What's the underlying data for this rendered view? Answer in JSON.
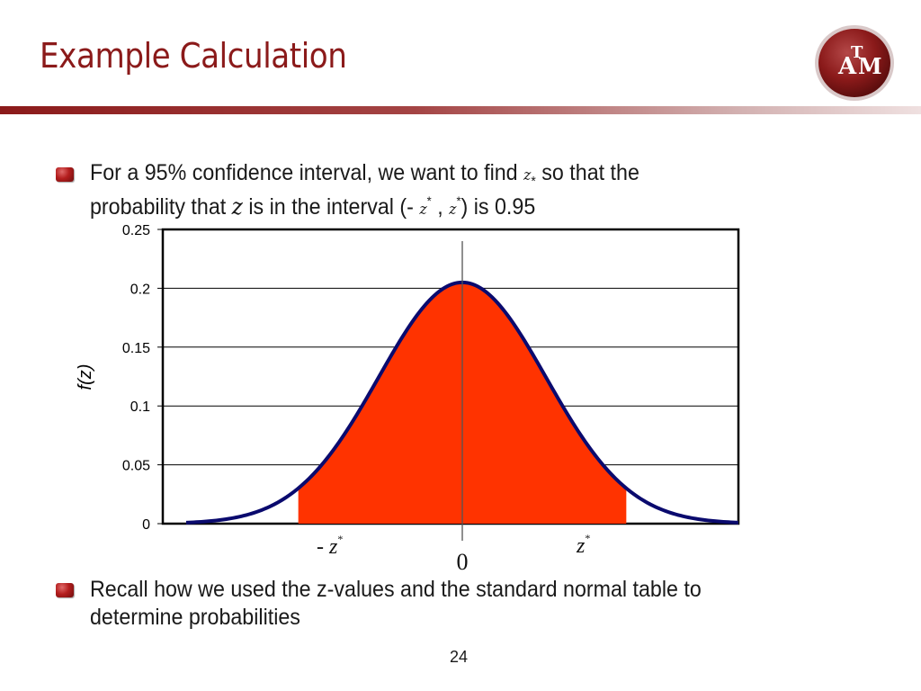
{
  "slide": {
    "title": "Example Calculation",
    "page_number": "24"
  },
  "bullets": {
    "first": {
      "line1_pre": "For a 95% confidence interval, we want to find ",
      "line1_var": "z",
      "line1_sub": "*",
      "line1_post": " so that the",
      "line2_pre": "probability that ",
      "line2_var": "z",
      "line2_mid": " is in the interval (- ",
      "line2_var2": "z",
      "line2_star2": "*",
      "line2_comma": " , ",
      "line2_var3": "z",
      "line2_star3": "*",
      "line2_post": ") is 0.95"
    },
    "second": {
      "line1": "Recall how we used the z-values and the standard normal table to",
      "line2": "determine probabilities"
    }
  },
  "logo": {
    "text_a": "A",
    "text_t": "T",
    "text_m": "M",
    "color": "#8b1a1a"
  },
  "chart_data": {
    "type": "area",
    "ylabel": "f(z)",
    "y_ticks": [
      "0",
      "0.05",
      "0.1",
      "0.15",
      "0.2",
      "0.25"
    ],
    "ylim": [
      0,
      0.25
    ],
    "xlim": [
      -3.3,
      3.3
    ],
    "grid": true,
    "curve": {
      "mean": 0,
      "peak": 0.205,
      "sigma": 1,
      "color": "#0a0a6e"
    },
    "shaded_region": {
      "from": -1.96,
      "to": 1.96,
      "color": "#ff3300"
    },
    "annotations": {
      "left_label_prefix": "- ",
      "left_label": "z",
      "left_star": "*",
      "center_label": "0",
      "right_label": "z",
      "right_star": "*"
    }
  }
}
